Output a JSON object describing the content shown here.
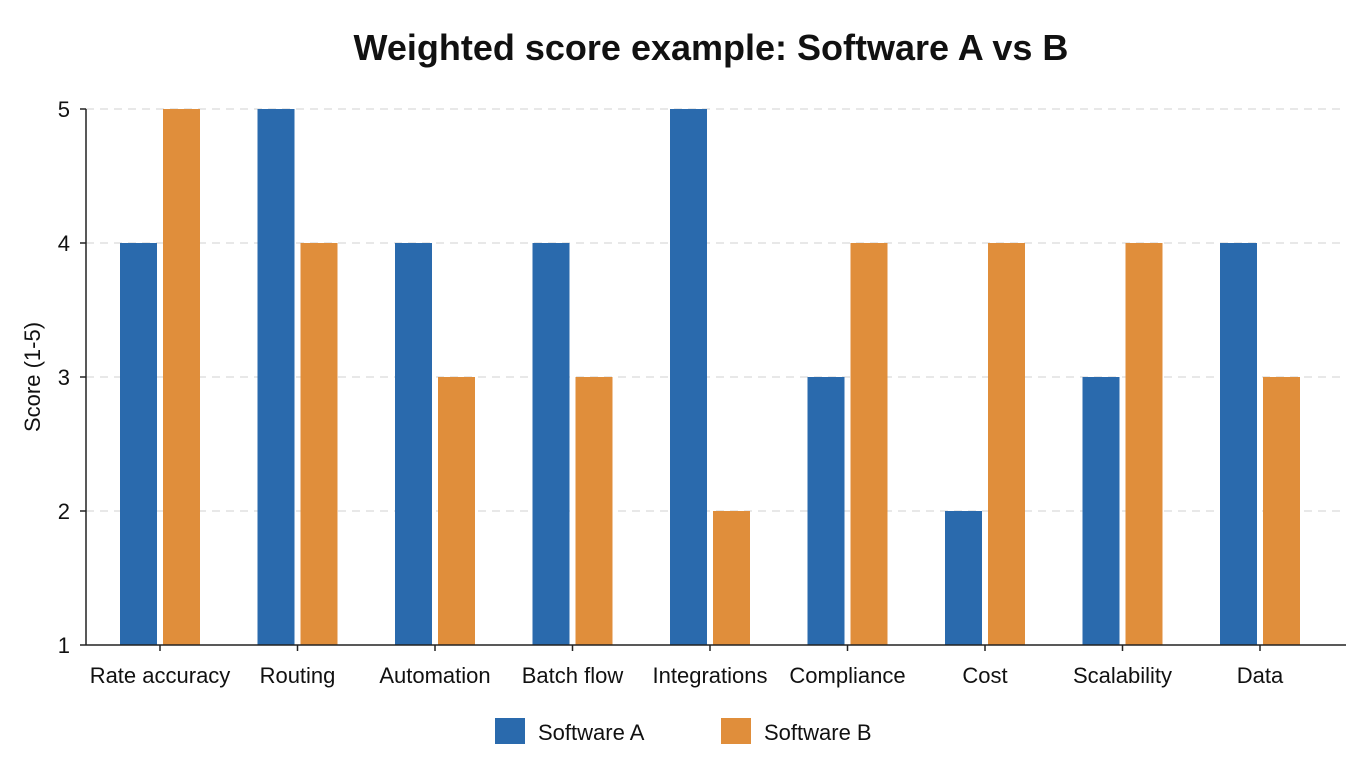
{
  "chart_data": {
    "type": "bar",
    "title": "Weighted score example: Software A vs B",
    "xlabel": "",
    "ylabel": "Score (1-5)",
    "ylim": [
      1,
      5
    ],
    "yticks": [
      1,
      2,
      3,
      4,
      5
    ],
    "grid": true,
    "legend_position": "bottom-center",
    "categories": [
      "Rate accuracy",
      "Routing",
      "Automation",
      "Batch flow",
      "Integrations",
      "Compliance",
      "Cost",
      "Scalability",
      "Data"
    ],
    "series": [
      {
        "name": "Software A",
        "color": "#2a6aad",
        "values": [
          4,
          5,
          4,
          4,
          5,
          3,
          2,
          3,
          4
        ]
      },
      {
        "name": "Software B",
        "color": "#e08e3b",
        "values": [
          5,
          4,
          3,
          3,
          2,
          4,
          4,
          4,
          3
        ]
      }
    ]
  }
}
